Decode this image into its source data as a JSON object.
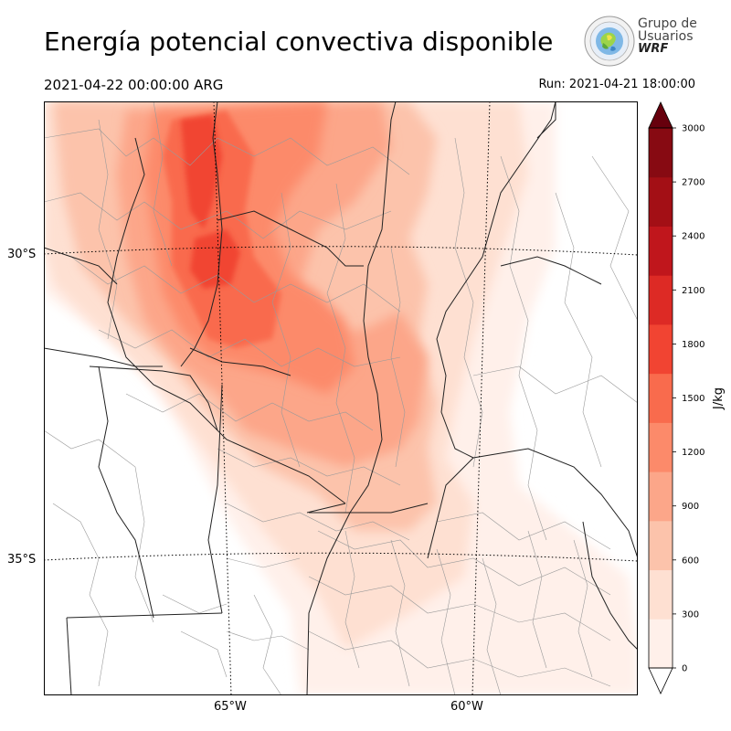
{
  "title": "Energía potencial convectiva disponible",
  "valid_time": "2021-04-22 00:00:00 ARG",
  "run_time": "Run: 2021-04-21 18:00:00",
  "logo": {
    "line1": "Grupo de",
    "line2": "Usuarios",
    "line3": "WRF"
  },
  "map": {
    "lat_labels": [
      "30°S",
      "35°S"
    ],
    "lon_labels": [
      "65°W",
      "60°W"
    ],
    "colors": {
      "border": "#222222",
      "departments": "#9a9a9a",
      "graticule": "#000000"
    }
  },
  "colorbar": {
    "unit": "J/kg",
    "ticks": [
      "0",
      "300",
      "600",
      "900",
      "1200",
      "1500",
      "1800",
      "2100",
      "2400",
      "2700",
      "3000"
    ],
    "colors": [
      "#fff0ea",
      "#fee0d2",
      "#fcc3ab",
      "#fca689",
      "#fc8a6a",
      "#f96b4d",
      "#f14432",
      "#dd2a25",
      "#c0161c",
      "#a30f15",
      "#870a12"
    ],
    "over_color": "#67000d",
    "under_color": "#ffffff"
  }
}
